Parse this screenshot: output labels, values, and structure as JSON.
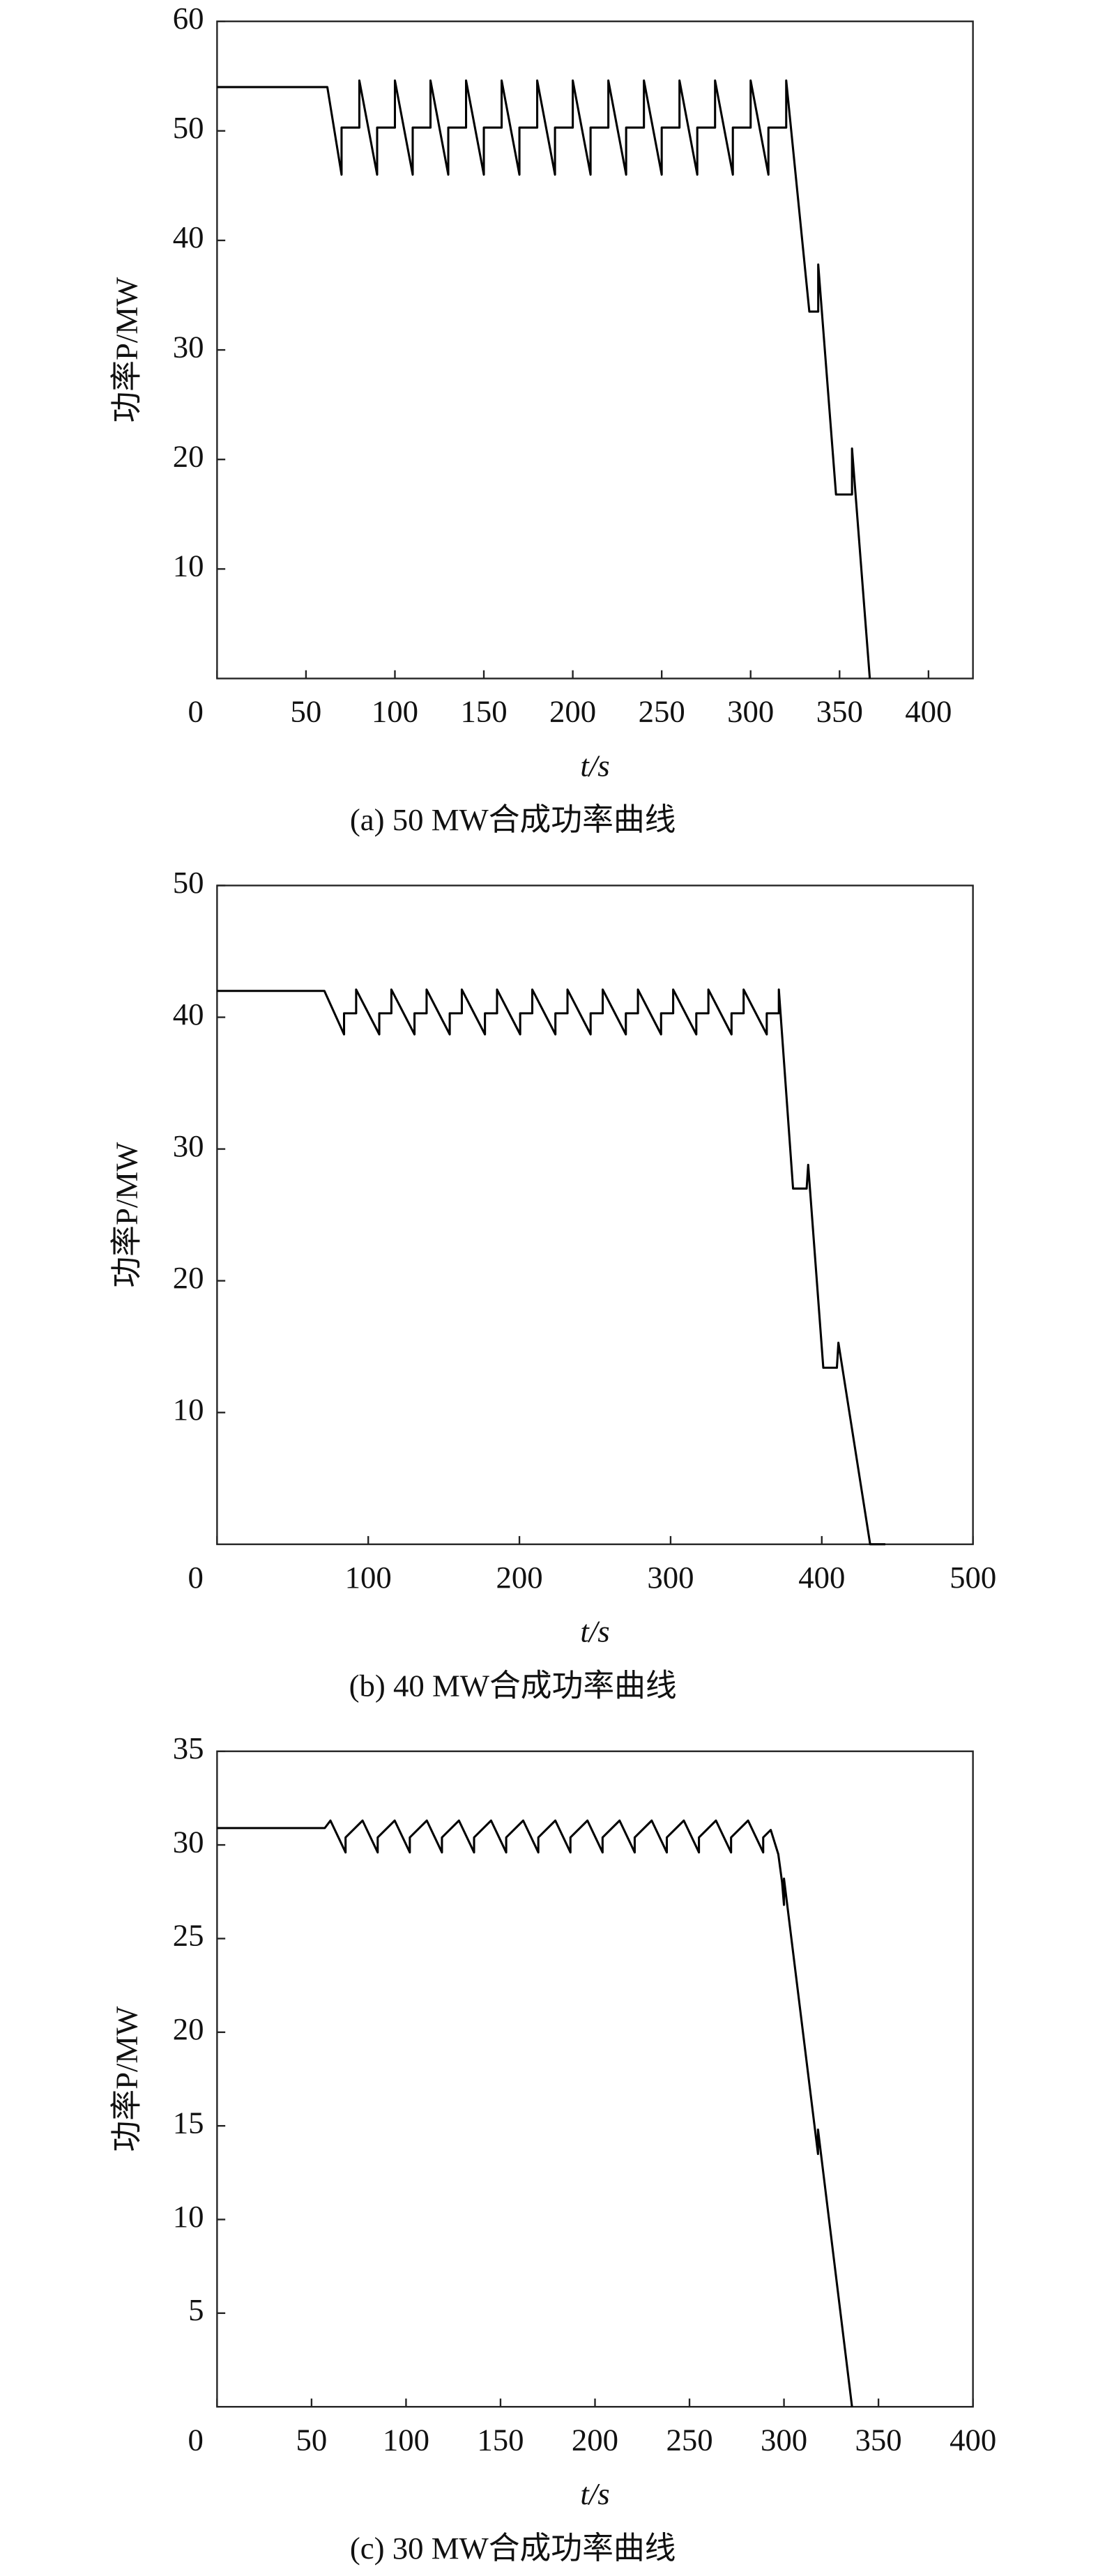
{
  "chart_data": [
    {
      "type": "line",
      "caption": "(a) 50 MW合成功率曲线",
      "x_label": "t/s",
      "y_label": "功率P/MW",
      "color": "#000000",
      "xlim": [
        0,
        425
      ],
      "ylim": [
        0,
        60
      ],
      "xticks": [
        0,
        50,
        100,
        150,
        200,
        250,
        300,
        350,
        400
      ],
      "yticks": [
        10,
        20,
        30,
        40,
        50,
        60
      ],
      "x": [
        0,
        62,
        70,
        70,
        80,
        80,
        90,
        90,
        100,
        100,
        110,
        110,
        120,
        120,
        130,
        130,
        140,
        140,
        150,
        150,
        160,
        160,
        170,
        170,
        180,
        180,
        190,
        190,
        200,
        200,
        210,
        210,
        220,
        220,
        230,
        230,
        240,
        240,
        250,
        250,
        260,
        260,
        270,
        270,
        280,
        280,
        290,
        290,
        300,
        300,
        310,
        310,
        320,
        320,
        333,
        338,
        338,
        348,
        357,
        357,
        367
      ],
      "values": [
        54,
        54,
        46,
        50.3,
        50.3,
        54.6,
        46,
        50.3,
        50.3,
        54.6,
        46,
        50.3,
        50.3,
        54.6,
        46,
        50.3,
        50.3,
        54.6,
        46,
        50.3,
        50.3,
        54.6,
        46,
        50.3,
        50.3,
        54.6,
        46,
        50.3,
        50.3,
        54.6,
        46,
        50.3,
        50.3,
        54.6,
        46,
        50.3,
        50.3,
        54.6,
        46,
        50.3,
        50.3,
        54.6,
        46,
        50.3,
        50.3,
        54.6,
        46,
        50.3,
        50.3,
        54.6,
        46,
        50.3,
        50.3,
        54.6,
        33.5,
        33.5,
        37.8,
        16.8,
        16.8,
        21,
        0
      ]
    },
    {
      "type": "line",
      "caption": "(b) 40 MW合成功率曲线",
      "x_label": "t/s",
      "y_label": "功率P/MW",
      "color": "#000000",
      "xlim": [
        0,
        500
      ],
      "ylim": [
        0,
        50
      ],
      "xticks": [
        0,
        100,
        200,
        300,
        400,
        500
      ],
      "yticks": [
        10,
        20,
        30,
        40,
        50
      ],
      "x": [
        0,
        71,
        84,
        84,
        92,
        92,
        107.3,
        107.3,
        115.3,
        115.3,
        130.6,
        130.6,
        138.6,
        138.6,
        153.9,
        153.9,
        161.9,
        161.9,
        177.2,
        177.2,
        185.2,
        185.2,
        200.5,
        200.5,
        208.5,
        208.5,
        223.8,
        223.8,
        231.8,
        231.8,
        247.1,
        247.1,
        255.1,
        255.1,
        270.4,
        270.4,
        278.4,
        278.4,
        293.7,
        293.7,
        301.7,
        301.7,
        317,
        317,
        325,
        325,
        340.3,
        340.3,
        348.3,
        348.3,
        363.6,
        363.6,
        371.6,
        371.6,
        381,
        390,
        391,
        401,
        410,
        411,
        432,
        442
      ],
      "values": [
        42,
        42,
        38.7,
        40.3,
        40.3,
        42.1,
        38.7,
        40.3,
        40.3,
        42.1,
        38.7,
        40.3,
        40.3,
        42.1,
        38.7,
        40.3,
        40.3,
        42.1,
        38.7,
        40.3,
        40.3,
        42.1,
        38.7,
        40.3,
        40.3,
        42.1,
        38.7,
        40.3,
        40.3,
        42.1,
        38.7,
        40.3,
        40.3,
        42.1,
        38.7,
        40.3,
        40.3,
        42.1,
        38.7,
        40.3,
        40.3,
        42.1,
        38.7,
        40.3,
        40.3,
        42.1,
        38.7,
        40.3,
        40.3,
        42.1,
        38.7,
        40.3,
        40.3,
        42.1,
        27,
        27,
        28.8,
        13.4,
        13.4,
        15.3,
        0,
        0
      ]
    },
    {
      "type": "line",
      "caption": "(c) 30 MW合成功率曲线",
      "x_label": "t/s",
      "y_label": "功率P/MW",
      "color": "#000000",
      "xlim": [
        0,
        400
      ],
      "ylim": [
        0,
        35
      ],
      "xticks": [
        0,
        50,
        100,
        150,
        200,
        250,
        300,
        350,
        400
      ],
      "yticks": [
        5,
        10,
        15,
        20,
        25,
        30,
        35
      ],
      "x": [
        0,
        57,
        60,
        68,
        68,
        77,
        85,
        85,
        94,
        102,
        102,
        111,
        119,
        119,
        128,
        136,
        136,
        145,
        153,
        153,
        162,
        170,
        170,
        179,
        187,
        187,
        196,
        204,
        204,
        213,
        221,
        221,
        230,
        238,
        238,
        247,
        255,
        255,
        264,
        272,
        272,
        281,
        289,
        289,
        293,
        297,
        299,
        300,
        300,
        318,
        318,
        336
      ],
      "values": [
        30.9,
        30.9,
        31.3,
        29.6,
        30.4,
        31.3,
        29.6,
        30.4,
        31.3,
        29.6,
        30.4,
        31.3,
        29.6,
        30.4,
        31.3,
        29.6,
        30.4,
        31.3,
        29.6,
        30.4,
        31.3,
        29.6,
        30.4,
        31.3,
        29.6,
        30.4,
        31.3,
        29.6,
        30.4,
        31.3,
        29.6,
        30.4,
        31.3,
        29.6,
        30.4,
        31.3,
        29.6,
        30.4,
        31.3,
        29.6,
        30.4,
        31.3,
        29.6,
        30.4,
        30.8,
        29.5,
        28,
        26.8,
        28.2,
        13.5,
        14.8,
        0
      ]
    }
  ]
}
